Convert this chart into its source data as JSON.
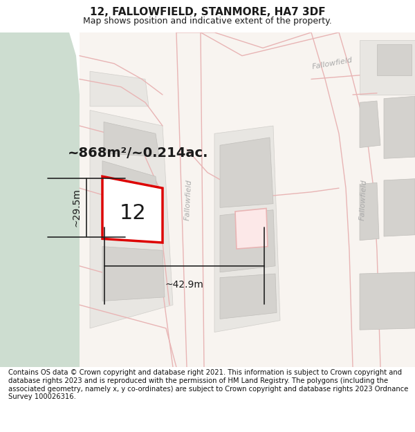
{
  "title": "12, FALLOWFIELD, STANMORE, HA7 3DF",
  "subtitle": "Map shows position and indicative extent of the property.",
  "footer": "Contains OS data © Crown copyright and database right 2021. This information is subject to Crown copyright and database rights 2023 and is reproduced with the permission of HM Land Registry. The polygons (including the associated geometry, namely x, y co-ordinates) are subject to Crown copyright and database rights 2023 Ordnance Survey 100026316.",
  "area_label": "~868m²/~0.214ac.",
  "width_label": "~42.9m",
  "height_label": "~29.5m",
  "property_number": "12",
  "bg_color": "#f0eeea",
  "green_color": "#cdddd0",
  "road_fill": "#f8f4f0",
  "road_line_color": "#e8b4b4",
  "block_fill": "#e8e6e2",
  "block_outline": "#d0ceca",
  "building_fill": "#d4d2ce",
  "building_outline": "#c0beba",
  "prop_fill": "#ffffff",
  "prop_outline": "#dd0000",
  "dim_color": "#222222",
  "text_color": "#1a1a1a",
  "road_text_color": "#aaaaaa",
  "title_fontsize": 11,
  "subtitle_fontsize": 9,
  "footer_fontsize": 7.2,
  "area_fontsize": 14,
  "number_fontsize": 22,
  "dim_fontsize": 10,
  "road_fontsize": 8
}
